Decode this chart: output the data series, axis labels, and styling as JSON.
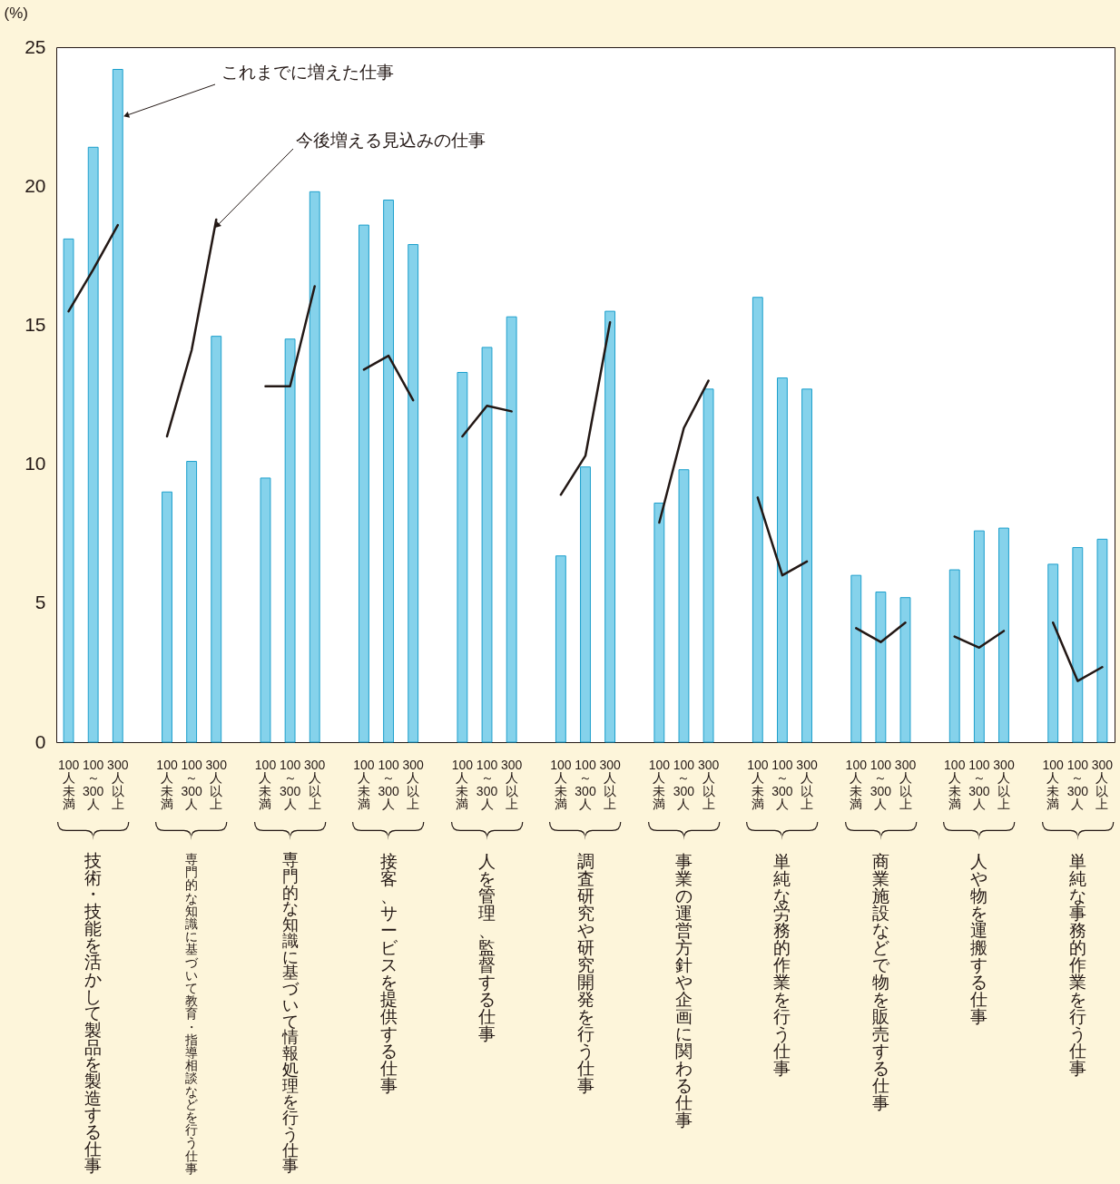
{
  "chart_data": {
    "type": "bar",
    "ylabel": "(%)",
    "categories": [
      "100人未満",
      "100～300人",
      "300人以上",
      null,
      "100人未満",
      "100～300人",
      "300人以上",
      null,
      "100人未満",
      "100～300人",
      "300人以上",
      null,
      "100人未満",
      "100～300人",
      "300人以上",
      null,
      "100人未満",
      "100～300人",
      "300人以上",
      null,
      "100人未満",
      "100～300人",
      "300人以上",
      null,
      "100人未満",
      "100～300人",
      "300人以上",
      null,
      "100人未満",
      "100～300人",
      "300人以上",
      null,
      "100人未満",
      "100～300人",
      "300人以上",
      null,
      "100人未満",
      "100～300人",
      "300人以上",
      null,
      "100人未満",
      "100～300人",
      "300人以上"
    ],
    "series": [
      {
        "name": "これまでに増えた仕事",
        "type": "bar",
        "color": "#5cc3e4",
        "values": [
          18.1,
          21.4,
          24.2,
          null,
          9.0,
          10.1,
          14.6,
          null,
          9.5,
          14.5,
          19.8,
          null,
          18.6,
          19.5,
          17.9,
          null,
          13.3,
          14.2,
          15.3,
          null,
          6.7,
          9.9,
          15.5,
          null,
          8.6,
          9.8,
          12.7,
          null,
          16.0,
          13.1,
          12.7,
          null,
          6.0,
          5.4,
          5.2,
          null,
          6.2,
          7.6,
          7.7,
          null,
          6.4,
          7.0,
          7.3
        ]
      },
      {
        "name": "今後増える見込みの仕事",
        "type": "line",
        "color": "#231815",
        "values": [
          15.5,
          17.0,
          18.6,
          null,
          11.0,
          14.1,
          18.8,
          null,
          12.8,
          12.8,
          16.4,
          null,
          13.4,
          13.9,
          12.3,
          null,
          11.0,
          12.1,
          11.9,
          null,
          8.9,
          10.3,
          15.1,
          null,
          7.9,
          11.3,
          13.0,
          null,
          8.8,
          6.0,
          6.5,
          null,
          4.1,
          3.6,
          4.3,
          null,
          3.8,
          3.4,
          4.0,
          null,
          4.3,
          2.2,
          2.7
        ]
      }
    ],
    "ylim": [
      0,
      25
    ],
    "yticks": [
      0,
      5,
      10,
      15,
      20,
      25
    ],
    "annotations": [
      "技術・技能を活かして製品を製造する仕事",
      "専門的な知識に基づいて教育・指導相談などを行う仕事",
      "専門的な知識に基づいて情報処理を行う仕事",
      "接客、サービスを提供する仕事",
      "人を管理、監督する仕事",
      "調査研究や研究開発を行う仕事",
      "事業の運営方針や企画に関わる仕事",
      "単純な労務的作業を行う仕事",
      "商業施設などで物を販売する仕事",
      "人や物を運搬する仕事",
      "単純な事務的作業を行う仕事"
    ]
  }
}
